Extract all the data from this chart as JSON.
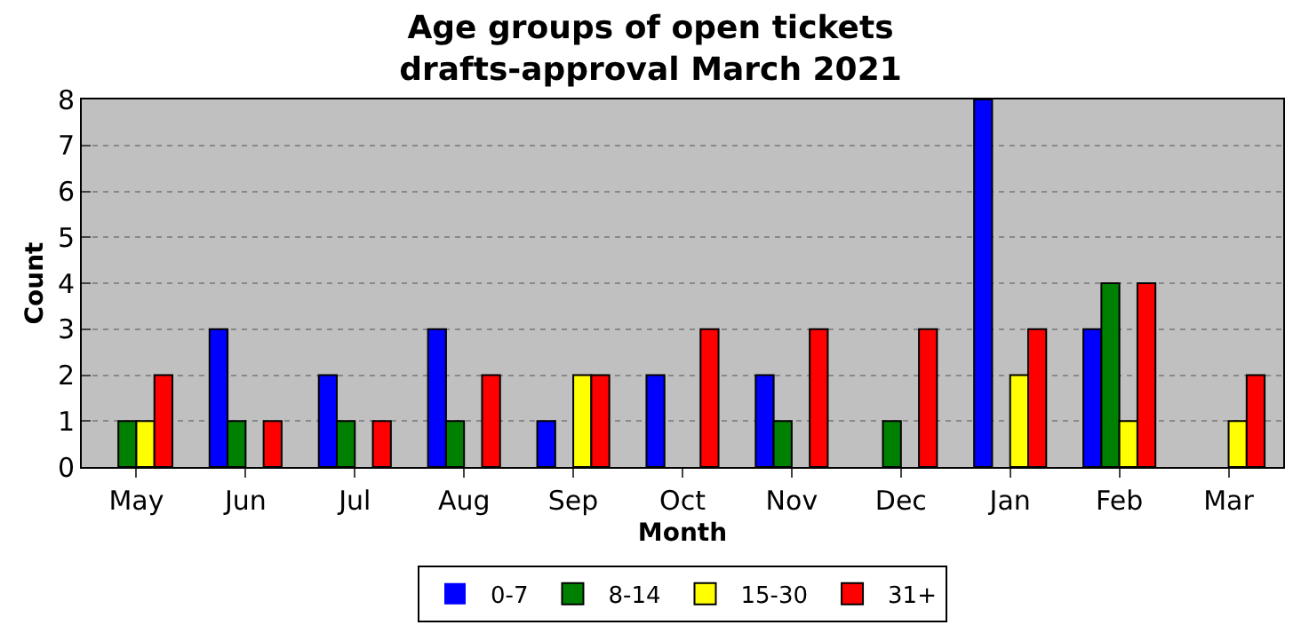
{
  "chart_data": {
    "type": "bar",
    "title": "Age groups of open tickets\ndrafts-approval March 2021",
    "xlabel": "Month",
    "ylabel": "Count",
    "categories": [
      "May",
      "Jun",
      "Jul",
      "Aug",
      "Sep",
      "Oct",
      "Nov",
      "Dec",
      "Jan",
      "Feb",
      "Mar"
    ],
    "series": [
      {
        "name": "0-7",
        "color": "#0000ff",
        "values": [
          0,
          3,
          2,
          3,
          1,
          2,
          2,
          0,
          8,
          3,
          0
        ]
      },
      {
        "name": "8-14",
        "color": "#008000",
        "values": [
          1,
          1,
          1,
          1,
          0,
          0,
          1,
          1,
          0,
          4,
          0
        ]
      },
      {
        "name": "15-30",
        "color": "#ffff00",
        "values": [
          1,
          0,
          0,
          0,
          2,
          0,
          0,
          0,
          2,
          1,
          1
        ]
      },
      {
        "name": "31+",
        "color": "#ff0000",
        "values": [
          2,
          1,
          1,
          2,
          2,
          3,
          3,
          3,
          3,
          4,
          2
        ]
      }
    ],
    "ylim": [
      0,
      8
    ],
    "yticks": [
      0,
      1,
      2,
      3,
      4,
      5,
      6,
      7,
      8
    ],
    "grid": "y",
    "legend": "bottom"
  }
}
